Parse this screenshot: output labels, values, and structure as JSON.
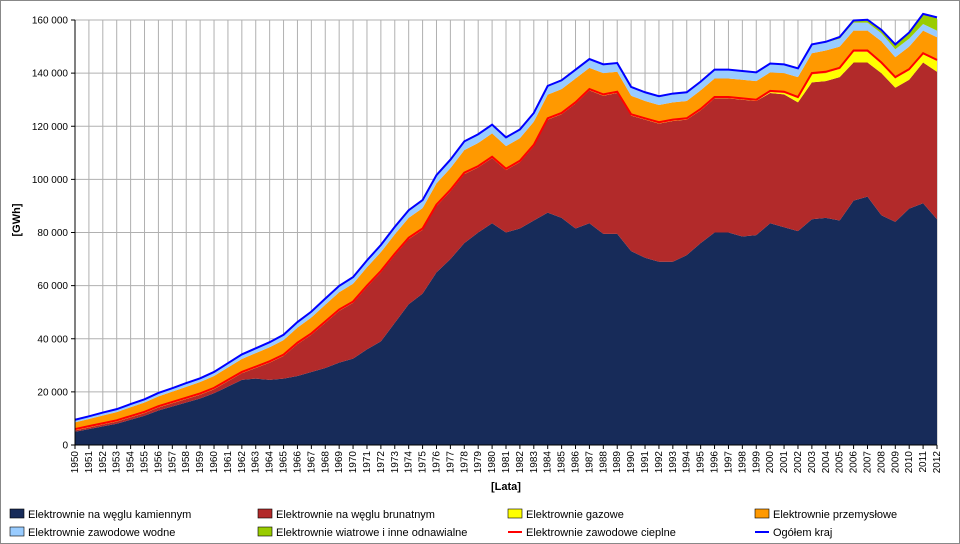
{
  "chart_data": {
    "type": "area",
    "stacked": true,
    "x": [
      1950,
      1951,
      1952,
      1953,
      1954,
      1955,
      1956,
      1957,
      1958,
      1959,
      1960,
      1961,
      1962,
      1963,
      1964,
      1965,
      1966,
      1967,
      1968,
      1969,
      1970,
      1971,
      1972,
      1973,
      1974,
      1975,
      1976,
      1977,
      1978,
      1979,
      1980,
      1981,
      1982,
      1983,
      1984,
      1985,
      1986,
      1987,
      1988,
      1989,
      1990,
      1991,
      1992,
      1993,
      1994,
      1995,
      1996,
      1997,
      1998,
      1999,
      2000,
      2001,
      2002,
      2003,
      2004,
      2005,
      2006,
      2007,
      2008,
      2009,
      2010,
      2011,
      2012
    ],
    "xlim": [
      1950,
      2012
    ],
    "ylim": [
      0,
      160000
    ],
    "yticks": [
      {
        "value": 0,
        "label": "0"
      },
      {
        "value": 20000,
        "label": "20 000"
      },
      {
        "value": 40000,
        "label": "40 000"
      },
      {
        "value": 60000,
        "label": "60 000"
      },
      {
        "value": 80000,
        "label": "80 000"
      },
      {
        "value": 100000,
        "label": "100 000"
      },
      {
        "value": 120000,
        "label": "120 000"
      },
      {
        "value": 140000,
        "label": "140 000"
      },
      {
        "value": 160000,
        "label": "160 000"
      }
    ],
    "ylabel": "[GWh]",
    "xlabel": "[Lata]",
    "grid": true,
    "series": [
      {
        "name": "Elektrownie na węglu kamiennym",
        "color": "#172b59",
        "kind": "area",
        "values": [
          5000,
          6000,
          7000,
          8000,
          9500,
          11000,
          13000,
          14500,
          16000,
          17500,
          19500,
          22000,
          24500,
          25000,
          24500,
          25000,
          26000,
          27500,
          29000,
          31000,
          32500,
          36000,
          39000,
          46000,
          53000,
          57000,
          65000,
          70000,
          76000,
          80000,
          83500,
          80000,
          81500,
          84500,
          87500,
          85500,
          81500,
          83500,
          79500,
          79500,
          73000,
          70500,
          69000,
          69000,
          71500,
          76000,
          80000,
          80000,
          78500,
          79000,
          83500,
          82000,
          80500,
          85000,
          85500,
          84500,
          92000,
          93500,
          86500,
          84000,
          89000,
          91000,
          85000
        ]
      },
      {
        "name": "Elektrownie na węglu brunatnym",
        "color": "#b22a2a",
        "kind": "area",
        "values": [
          500,
          600,
          700,
          800,
          900,
          1000,
          1100,
          1200,
          1300,
          1400,
          1500,
          2000,
          2500,
          4000,
          6500,
          8500,
          12000,
          14000,
          17000,
          19500,
          21000,
          23500,
          26000,
          25500,
          24500,
          24000,
          25000,
          25500,
          26000,
          24500,
          24500,
          23500,
          25000,
          28000,
          35000,
          39000,
          47000,
          50000,
          52000,
          53000,
          51000,
          52000,
          52000,
          53000,
          51000,
          50000,
          50500,
          50500,
          51500,
          50500,
          49000,
          50000,
          48500,
          51500,
          51500,
          54000,
          52000,
          50500,
          53500,
          50500,
          48500,
          53000,
          55500
        ]
      },
      {
        "name": "Elektrownie gazowe",
        "color": "#ffff00",
        "kind": "area",
        "values": [
          0,
          0,
          0,
          0,
          0,
          0,
          0,
          0,
          0,
          0,
          0,
          0,
          0,
          0,
          0,
          0,
          0,
          0,
          0,
          0,
          0,
          0,
          0,
          0,
          0,
          0,
          0,
          0,
          0,
          0,
          0,
          0,
          0,
          0,
          0,
          0,
          0,
          0,
          0,
          0,
          0,
          0,
          0,
          0,
          0,
          0,
          0,
          0,
          0,
          0,
          300,
          500,
          1500,
          3000,
          3000,
          3000,
          4000,
          4000,
          3500,
          3500,
          3500,
          3000,
          4000
        ]
      },
      {
        "name": "Elektrownie przemysłowe",
        "color": "#ff9900",
        "kind": "area",
        "values": [
          3000,
          3200,
          3400,
          3600,
          3800,
          4000,
          4200,
          4400,
          4600,
          4800,
          5000,
          5200,
          5400,
          5600,
          5800,
          6000,
          6200,
          6500,
          6800,
          7000,
          7200,
          7400,
          7600,
          7800,
          8000,
          8200,
          8500,
          8700,
          9000,
          9200,
          9300,
          9000,
          9000,
          9200,
          9400,
          9500,
          9500,
          8500,
          8500,
          8000,
          7500,
          7000,
          7000,
          7000,
          7000,
          7500,
          7500,
          7500,
          7500,
          7500,
          7500,
          7500,
          8000,
          8000,
          8500,
          8500,
          8000,
          8000,
          8500,
          8000,
          9000,
          9000,
          9000
        ]
      },
      {
        "name": "Elektrownie zawodowe wodne",
        "color": "#99ccff",
        "kind": "area",
        "values": [
          700,
          700,
          800,
          800,
          900,
          900,
          1000,
          1000,
          1100,
          1100,
          1200,
          1300,
          1400,
          1500,
          1600,
          1700,
          1800,
          1900,
          2000,
          2100,
          2200,
          2300,
          2400,
          2500,
          2600,
          2700,
          2800,
          2900,
          3000,
          3000,
          3000,
          3000,
          3000,
          3000,
          3000,
          3000,
          3000,
          3000,
          3000,
          3000,
          3000,
          3000,
          3000,
          3000,
          3000,
          3000,
          3000,
          3000,
          3000,
          3000,
          3000,
          3000,
          3000,
          3000,
          3000,
          3000,
          3000,
          3000,
          3000,
          3000,
          3000,
          2500,
          2500
        ]
      },
      {
        "name": "Elektrownie wiatrowe i inne odnawialne",
        "color": "#99cc00",
        "kind": "area",
        "values": [
          0,
          0,
          0,
          0,
          0,
          0,
          0,
          0,
          0,
          0,
          0,
          0,
          0,
          0,
          0,
          0,
          0,
          0,
          0,
          0,
          0,
          0,
          0,
          0,
          0,
          0,
          0,
          0,
          0,
          0,
          0,
          0,
          0,
          0,
          0,
          0,
          0,
          0,
          0,
          0,
          0,
          0,
          0,
          0,
          0,
          0,
          0,
          0,
          0,
          0,
          0,
          0,
          0,
          0,
          0,
          300,
          500,
          800,
          1000,
          1500,
          2000,
          3500,
          4700
        ]
      },
      {
        "name": "Elektrownie zawodowe cieplne",
        "color": "#ff0000",
        "kind": "line",
        "values": [
          6000,
          7100,
          8200,
          9300,
          10900,
          12500,
          14600,
          16200,
          17800,
          19400,
          21500,
          24500,
          27500,
          29500,
          31500,
          34000,
          38500,
          42000,
          46500,
          51000,
          54000,
          60000,
          65500,
          72000,
          78000,
          81500,
          90500,
          96000,
          102500,
          105000,
          108500,
          104000,
          107000,
          113000,
          123000,
          125000,
          129000,
          134000,
          132000,
          133000,
          124500,
          123000,
          121500,
          122500,
          123000,
          126500,
          131000,
          131000,
          130500,
          130000,
          133300,
          133000,
          131000,
          140000,
          140500,
          142000,
          148500,
          148500,
          144000,
          138500,
          141500,
          147500,
          145000
        ]
      },
      {
        "name": "Ogółem kraj",
        "color": "#0000ff",
        "kind": "line",
        "values": [
          9500,
          10800,
          12200,
          13500,
          15400,
          17200,
          19600,
          21400,
          23300,
          25100,
          27500,
          30800,
          34100,
          36400,
          38700,
          41500,
          46300,
          50200,
          55100,
          59900,
          63200,
          69500,
          75300,
          82100,
          88400,
          92200,
          101600,
          107400,
          114300,
          117000,
          120600,
          115800,
          118800,
          125000,
          135200,
          137300,
          141300,
          145300,
          143300,
          143800,
          134800,
          132800,
          131300,
          132300,
          132800,
          136800,
          141300,
          141300,
          140800,
          140300,
          143600,
          143300,
          141800,
          150800,
          151800,
          153600,
          159800,
          160100,
          156300,
          150800,
          155300,
          162300,
          161000
        ]
      }
    ]
  }
}
